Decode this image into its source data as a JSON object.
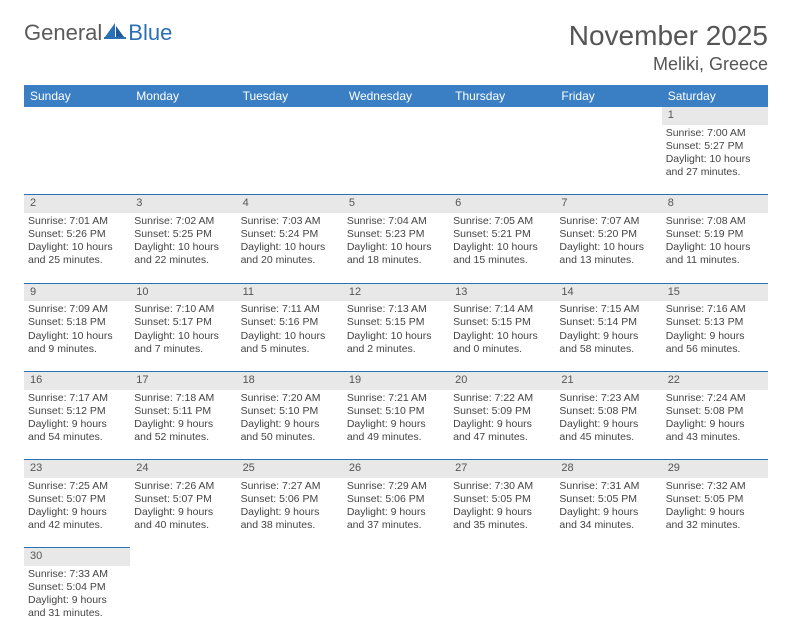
{
  "logo": {
    "general": "General",
    "blue": "Blue"
  },
  "header": {
    "title": "November 2025",
    "location": "Meliki, Greece"
  },
  "colors": {
    "header_bg": "#3a7fc4",
    "accent": "#2a70b7",
    "daynum_bg": "#e8e8e8",
    "text": "#444444"
  },
  "day_labels": [
    "Sunday",
    "Monday",
    "Tuesday",
    "Wednesday",
    "Thursday",
    "Friday",
    "Saturday"
  ],
  "weeks": [
    {
      "days": [
        null,
        null,
        null,
        null,
        null,
        null,
        {
          "n": "1",
          "sunrise": "Sunrise: 7:00 AM",
          "sunset": "Sunset: 5:27 PM",
          "day1": "Daylight: 10 hours",
          "day2": "and 27 minutes."
        }
      ]
    },
    {
      "days": [
        {
          "n": "2",
          "sunrise": "Sunrise: 7:01 AM",
          "sunset": "Sunset: 5:26 PM",
          "day1": "Daylight: 10 hours",
          "day2": "and 25 minutes."
        },
        {
          "n": "3",
          "sunrise": "Sunrise: 7:02 AM",
          "sunset": "Sunset: 5:25 PM",
          "day1": "Daylight: 10 hours",
          "day2": "and 22 minutes."
        },
        {
          "n": "4",
          "sunrise": "Sunrise: 7:03 AM",
          "sunset": "Sunset: 5:24 PM",
          "day1": "Daylight: 10 hours",
          "day2": "and 20 minutes."
        },
        {
          "n": "5",
          "sunrise": "Sunrise: 7:04 AM",
          "sunset": "Sunset: 5:23 PM",
          "day1": "Daylight: 10 hours",
          "day2": "and 18 minutes."
        },
        {
          "n": "6",
          "sunrise": "Sunrise: 7:05 AM",
          "sunset": "Sunset: 5:21 PM",
          "day1": "Daylight: 10 hours",
          "day2": "and 15 minutes."
        },
        {
          "n": "7",
          "sunrise": "Sunrise: 7:07 AM",
          "sunset": "Sunset: 5:20 PM",
          "day1": "Daylight: 10 hours",
          "day2": "and 13 minutes."
        },
        {
          "n": "8",
          "sunrise": "Sunrise: 7:08 AM",
          "sunset": "Sunset: 5:19 PM",
          "day1": "Daylight: 10 hours",
          "day2": "and 11 minutes."
        }
      ]
    },
    {
      "days": [
        {
          "n": "9",
          "sunrise": "Sunrise: 7:09 AM",
          "sunset": "Sunset: 5:18 PM",
          "day1": "Daylight: 10 hours",
          "day2": "and 9 minutes."
        },
        {
          "n": "10",
          "sunrise": "Sunrise: 7:10 AM",
          "sunset": "Sunset: 5:17 PM",
          "day1": "Daylight: 10 hours",
          "day2": "and 7 minutes."
        },
        {
          "n": "11",
          "sunrise": "Sunrise: 7:11 AM",
          "sunset": "Sunset: 5:16 PM",
          "day1": "Daylight: 10 hours",
          "day2": "and 5 minutes."
        },
        {
          "n": "12",
          "sunrise": "Sunrise: 7:13 AM",
          "sunset": "Sunset: 5:15 PM",
          "day1": "Daylight: 10 hours",
          "day2": "and 2 minutes."
        },
        {
          "n": "13",
          "sunrise": "Sunrise: 7:14 AM",
          "sunset": "Sunset: 5:15 PM",
          "day1": "Daylight: 10 hours",
          "day2": "and 0 minutes."
        },
        {
          "n": "14",
          "sunrise": "Sunrise: 7:15 AM",
          "sunset": "Sunset: 5:14 PM",
          "day1": "Daylight: 9 hours",
          "day2": "and 58 minutes."
        },
        {
          "n": "15",
          "sunrise": "Sunrise: 7:16 AM",
          "sunset": "Sunset: 5:13 PM",
          "day1": "Daylight: 9 hours",
          "day2": "and 56 minutes."
        }
      ]
    },
    {
      "days": [
        {
          "n": "16",
          "sunrise": "Sunrise: 7:17 AM",
          "sunset": "Sunset: 5:12 PM",
          "day1": "Daylight: 9 hours",
          "day2": "and 54 minutes."
        },
        {
          "n": "17",
          "sunrise": "Sunrise: 7:18 AM",
          "sunset": "Sunset: 5:11 PM",
          "day1": "Daylight: 9 hours",
          "day2": "and 52 minutes."
        },
        {
          "n": "18",
          "sunrise": "Sunrise: 7:20 AM",
          "sunset": "Sunset: 5:10 PM",
          "day1": "Daylight: 9 hours",
          "day2": "and 50 minutes."
        },
        {
          "n": "19",
          "sunrise": "Sunrise: 7:21 AM",
          "sunset": "Sunset: 5:10 PM",
          "day1": "Daylight: 9 hours",
          "day2": "and 49 minutes."
        },
        {
          "n": "20",
          "sunrise": "Sunrise: 7:22 AM",
          "sunset": "Sunset: 5:09 PM",
          "day1": "Daylight: 9 hours",
          "day2": "and 47 minutes."
        },
        {
          "n": "21",
          "sunrise": "Sunrise: 7:23 AM",
          "sunset": "Sunset: 5:08 PM",
          "day1": "Daylight: 9 hours",
          "day2": "and 45 minutes."
        },
        {
          "n": "22",
          "sunrise": "Sunrise: 7:24 AM",
          "sunset": "Sunset: 5:08 PM",
          "day1": "Daylight: 9 hours",
          "day2": "and 43 minutes."
        }
      ]
    },
    {
      "days": [
        {
          "n": "23",
          "sunrise": "Sunrise: 7:25 AM",
          "sunset": "Sunset: 5:07 PM",
          "day1": "Daylight: 9 hours",
          "day2": "and 42 minutes."
        },
        {
          "n": "24",
          "sunrise": "Sunrise: 7:26 AM",
          "sunset": "Sunset: 5:07 PM",
          "day1": "Daylight: 9 hours",
          "day2": "and 40 minutes."
        },
        {
          "n": "25",
          "sunrise": "Sunrise: 7:27 AM",
          "sunset": "Sunset: 5:06 PM",
          "day1": "Daylight: 9 hours",
          "day2": "and 38 minutes."
        },
        {
          "n": "26",
          "sunrise": "Sunrise: 7:29 AM",
          "sunset": "Sunset: 5:06 PM",
          "day1": "Daylight: 9 hours",
          "day2": "and 37 minutes."
        },
        {
          "n": "27",
          "sunrise": "Sunrise: 7:30 AM",
          "sunset": "Sunset: 5:05 PM",
          "day1": "Daylight: 9 hours",
          "day2": "and 35 minutes."
        },
        {
          "n": "28",
          "sunrise": "Sunrise: 7:31 AM",
          "sunset": "Sunset: 5:05 PM",
          "day1": "Daylight: 9 hours",
          "day2": "and 34 minutes."
        },
        {
          "n": "29",
          "sunrise": "Sunrise: 7:32 AM",
          "sunset": "Sunset: 5:05 PM",
          "day1": "Daylight: 9 hours",
          "day2": "and 32 minutes."
        }
      ]
    },
    {
      "days": [
        {
          "n": "30",
          "sunrise": "Sunrise: 7:33 AM",
          "sunset": "Sunset: 5:04 PM",
          "day1": "Daylight: 9 hours",
          "day2": "and 31 minutes."
        },
        null,
        null,
        null,
        null,
        null,
        null
      ]
    }
  ]
}
